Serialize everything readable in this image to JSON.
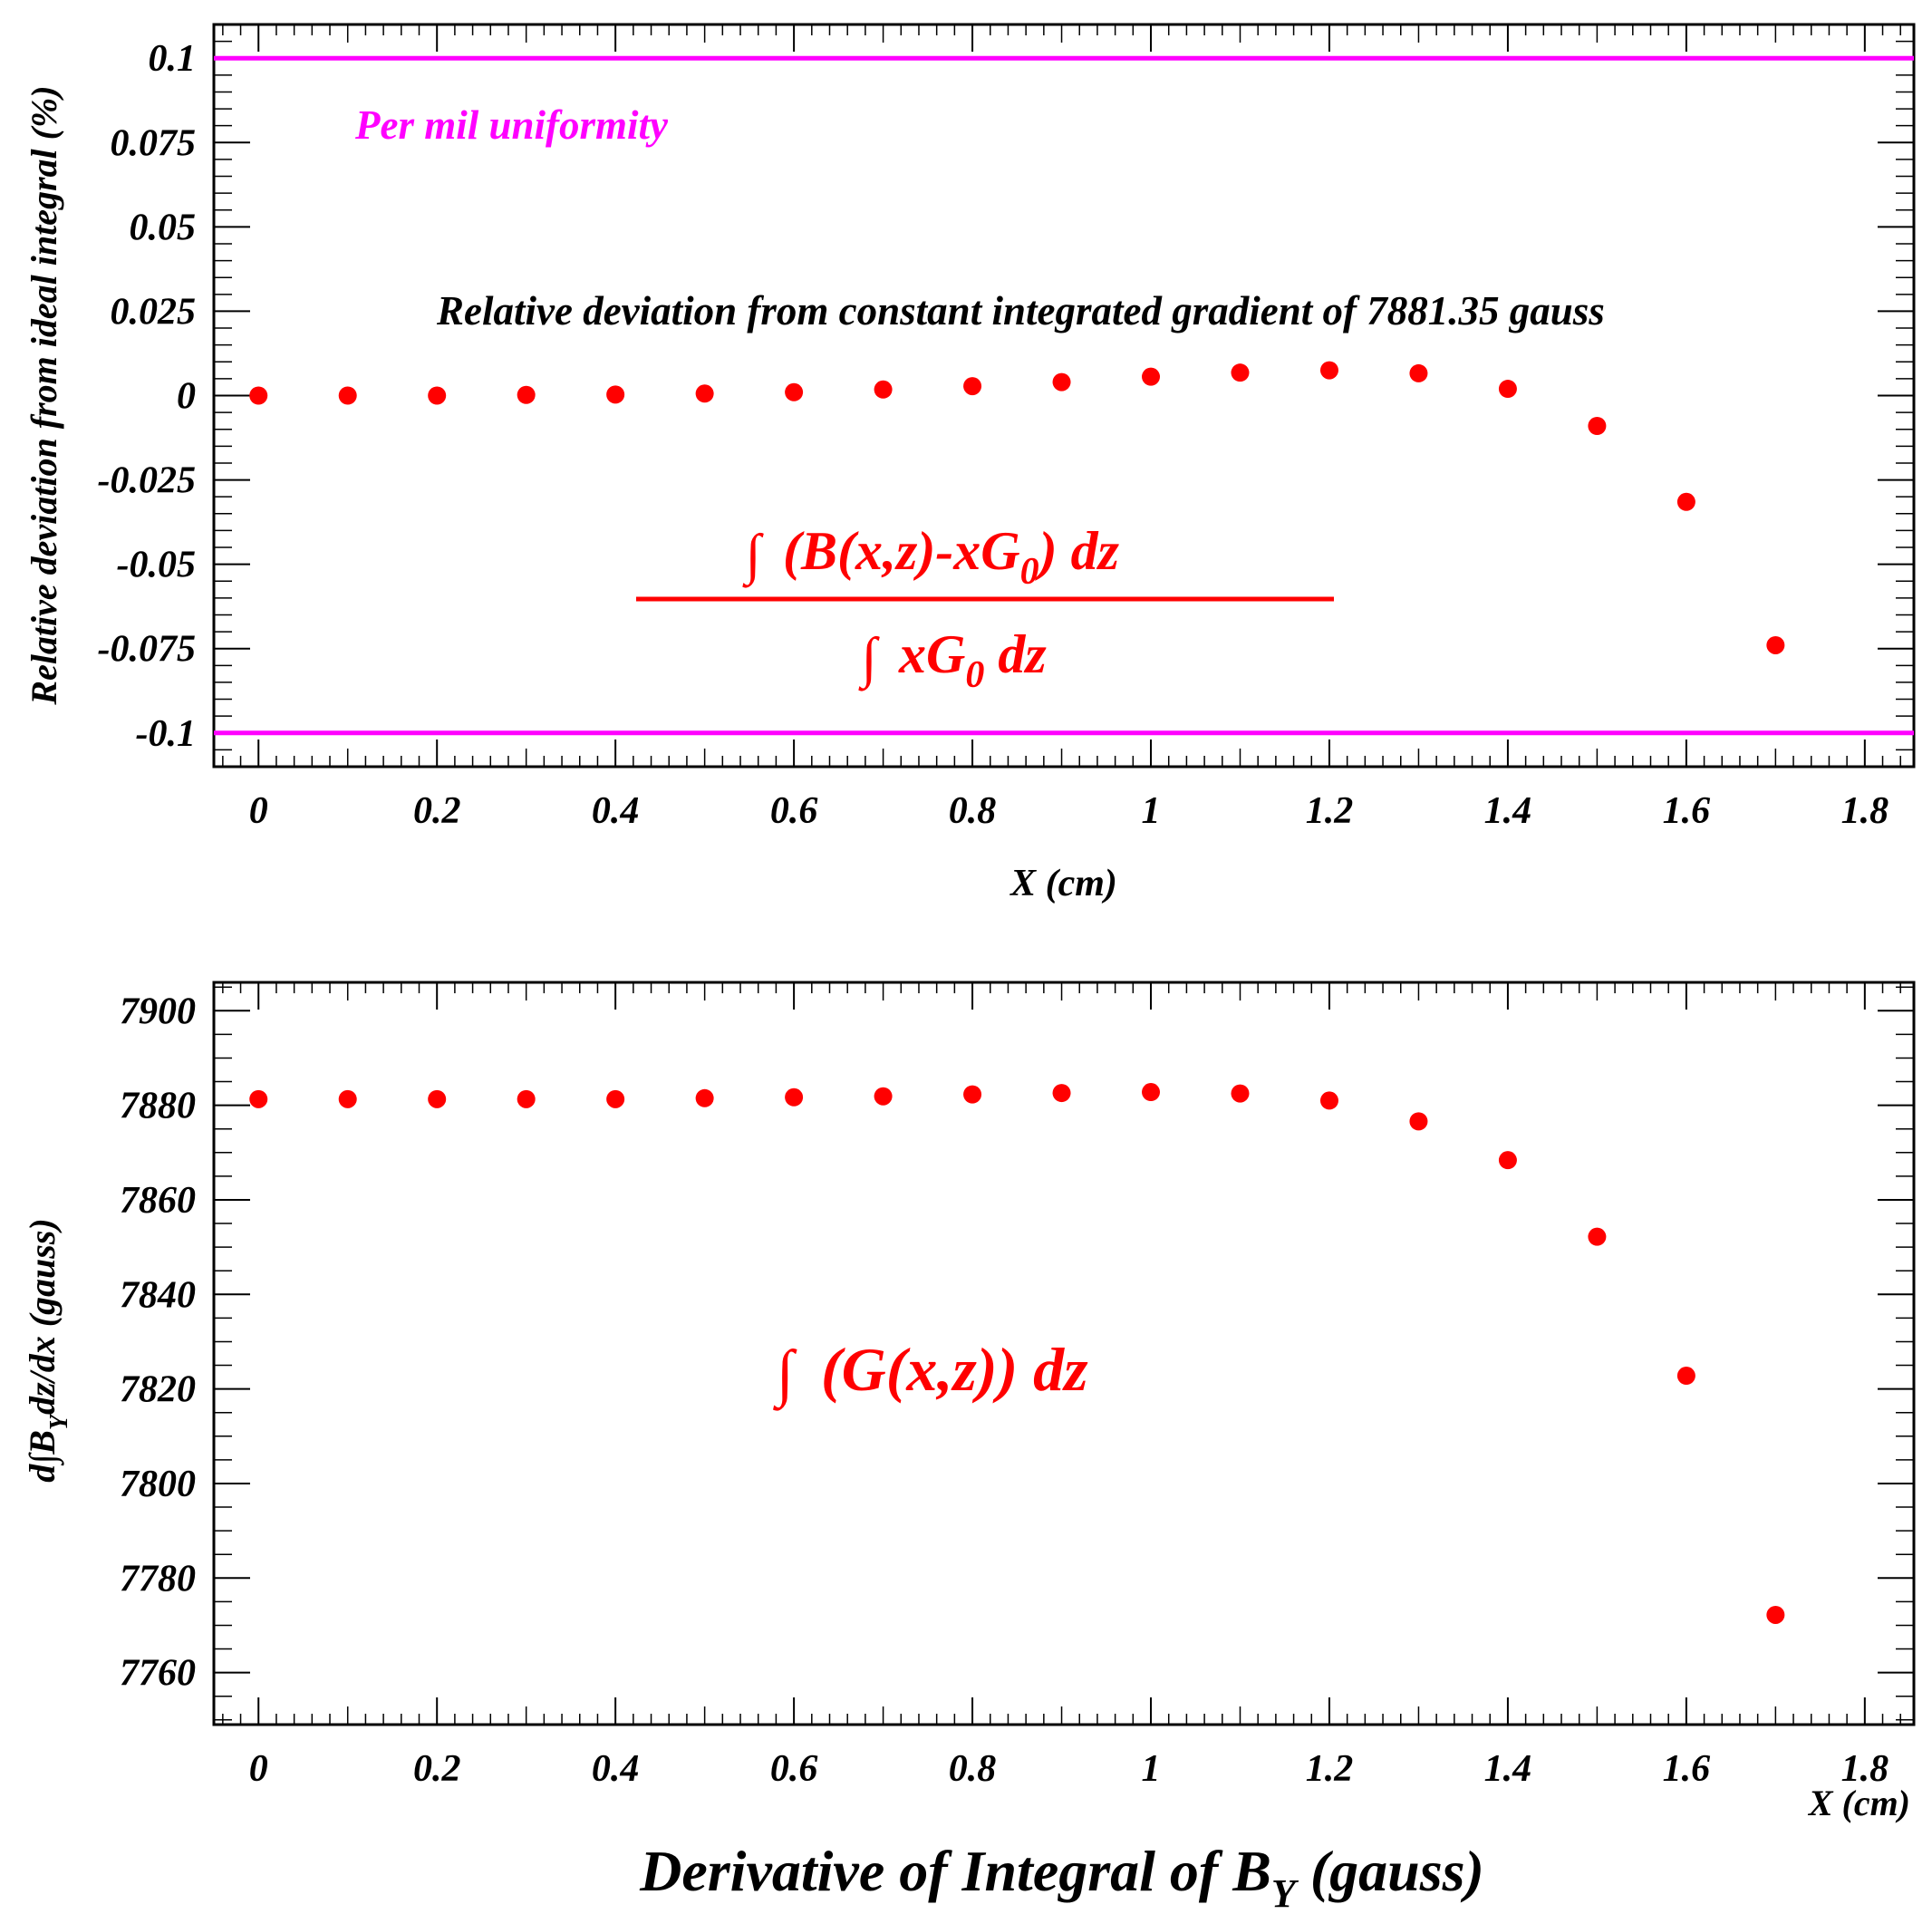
{
  "title": "Derivative of Integral of B",
  "title_sub": "Y",
  "title_suffix": " (gauss)",
  "colors": {
    "points": "#ff0000",
    "limits": "#ff00ff",
    "axis": "#000000",
    "annotation": "#000000"
  },
  "chart_data": [
    {
      "type": "scatter",
      "name": "relative-deviation",
      "xlabel": "X (cm)",
      "ylabel": "Relative deviation from ideal integral (%)",
      "xlim": [
        -0.05,
        1.855
      ],
      "ylim": [
        -0.11,
        0.11
      ],
      "x_ticks": [
        0,
        0.2,
        0.4,
        0.6,
        0.8,
        1,
        1.2,
        1.4,
        1.6,
        1.8
      ],
      "x_tick_labels": [
        "0",
        "0.2",
        "0.4",
        "0.6",
        "0.8",
        "1",
        "1.2",
        "1.4",
        "1.6",
        "1.8"
      ],
      "y_ticks": [
        -0.1,
        -0.075,
        -0.05,
        -0.025,
        0,
        0.025,
        0.05,
        0.075,
        0.1
      ],
      "y_tick_labels": [
        "-0.1",
        "-0.075",
        "-0.05",
        "-0.025",
        "0",
        "0.025",
        "0.05",
        "0.075",
        "0.1"
      ],
      "x": [
        0,
        0.1,
        0.2,
        0.3,
        0.4,
        0.5,
        0.6,
        0.7,
        0.8,
        0.9,
        1.0,
        1.1,
        1.2,
        1.3,
        1.4,
        1.5,
        1.6,
        1.7
      ],
      "y": [
        0,
        0,
        0,
        0.0002,
        0.0003,
        0.0006,
        0.001,
        0.0018,
        0.0028,
        0.004,
        0.0056,
        0.0068,
        0.0075,
        0.0066,
        0.002,
        -0.009,
        -0.0315,
        -0.074
      ],
      "reference_lines": [
        {
          "y": 0.1,
          "label": "Per mil uniformity"
        },
        {
          "y": -0.1,
          "label": ""
        }
      ],
      "limit_label": "Per mil uniformity",
      "annotation": "Relative deviation from constant integrated gradient of 7881.35 gauss",
      "formula": {
        "int_sign": "∫",
        "numerator_main": "(B(x,z)-xG",
        "numerator_sub": "0",
        "numerator_tail": ") dz",
        "denominator_main": "xG",
        "denominator_sub": "0",
        "denominator_tail": " dz"
      }
    },
    {
      "type": "scatter",
      "name": "integrated-gradient",
      "xlabel": "X (cm)",
      "ylabel_main": "d∫B",
      "ylabel_sub": "Y",
      "ylabel_tail": "dz/dx (gauss)",
      "xlim": [
        -0.05,
        1.855
      ],
      "ylim": [
        7749,
        7906
      ],
      "x_ticks": [
        0,
        0.2,
        0.4,
        0.6,
        0.8,
        1,
        1.2,
        1.4,
        1.6,
        1.8
      ],
      "x_tick_labels": [
        "0",
        "0.2",
        "0.4",
        "0.6",
        "0.8",
        "1",
        "1.2",
        "1.4",
        "1.6",
        "1.8"
      ],
      "y_ticks": [
        7760,
        7780,
        7800,
        7820,
        7840,
        7860,
        7880,
        7900
      ],
      "y_tick_labels": [
        "7760",
        "7780",
        "7800",
        "7820",
        "7840",
        "7860",
        "7880",
        "7900"
      ],
      "x": [
        0,
        0.1,
        0.2,
        0.3,
        0.4,
        0.5,
        0.6,
        0.7,
        0.8,
        0.9,
        1.0,
        1.1,
        1.2,
        1.3,
        1.4,
        1.5,
        1.6,
        1.7
      ],
      "y": [
        7881.3,
        7881.3,
        7881.3,
        7881.3,
        7881.3,
        7881.5,
        7881.7,
        7881.9,
        7882.3,
        7882.6,
        7882.8,
        7882.5,
        7881.0,
        7876.6,
        7868.4,
        7852.2,
        7822.8,
        7772.2
      ],
      "formula": {
        "int_sign": "∫",
        "main": "(G(x,z)) dz"
      }
    }
  ]
}
